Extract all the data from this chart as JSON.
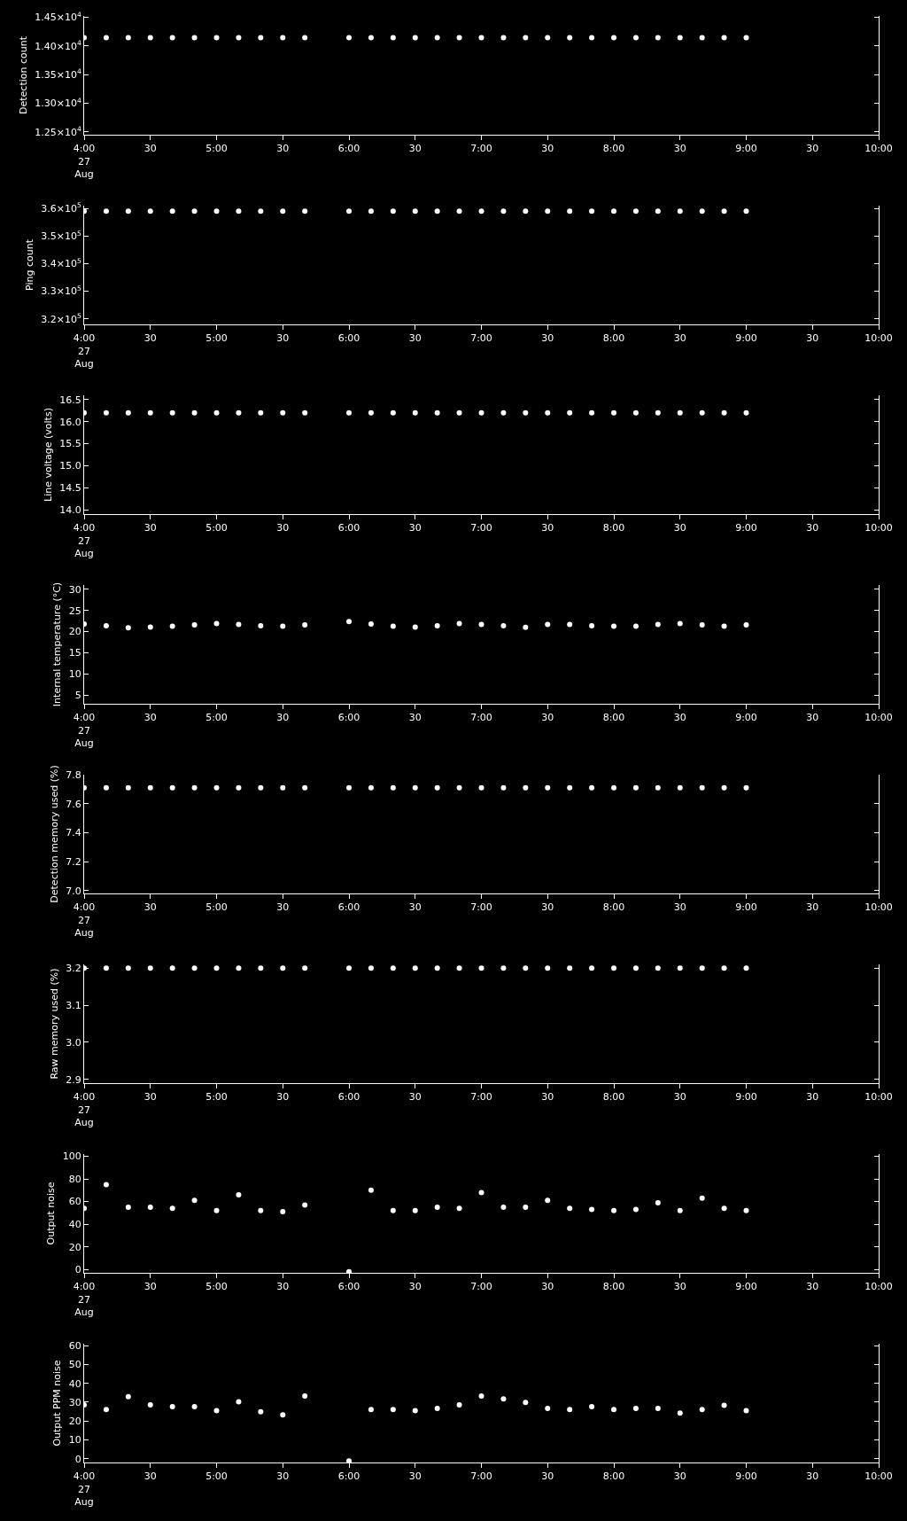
{
  "chart_data": [
    {
      "type": "scatter",
      "ylabel": "Detection count",
      "marker": "circle",
      "color": "#ffffff",
      "x": [
        "--08-27T04:00",
        "--08-27T04:10",
        "--08-27T04:20",
        "--08-27T04:30",
        "--08-27T04:40",
        "--08-27T04:50",
        "--08-27T05:00",
        "--08-27T05:10",
        "--08-27T05:20",
        "--08-27T05:30",
        "--08-27T05:40",
        "--08-27T06:00",
        "--08-27T06:10",
        "--08-27T06:20",
        "--08-27T06:30",
        "--08-27T06:40",
        "--08-27T06:50",
        "--08-27T07:00",
        "--08-27T07:10",
        "--08-27T07:20",
        "--08-27T07:30",
        "--08-27T07:40",
        "--08-27T07:50",
        "--08-27T08:00",
        "--08-27T08:10",
        "--08-27T08:20",
        "--08-27T08:30",
        "--08-27T08:40",
        "--08-27T08:50",
        "--08-27T09:00"
      ],
      "values": [
        14140,
        14140,
        14140,
        14140,
        14140,
        14140,
        14140,
        14140,
        14140,
        14140,
        14140,
        14140,
        14140,
        14140,
        14140,
        14140,
        14140,
        14140,
        14140,
        14140,
        14140,
        14140,
        14140,
        14140,
        14140,
        14140,
        14140,
        14140,
        14140,
        14140
      ],
      "xlim": [
        "--08-27T04:00",
        "--08-27T10:00"
      ],
      "xticks": [
        {
          "value": "--08-27T04:00",
          "label": "4:00\n27\nAug"
        },
        {
          "value": "--08-27T04:30",
          "label": "30"
        },
        {
          "value": "--08-27T05:00",
          "label": "5:00"
        },
        {
          "value": "--08-27T05:30",
          "label": "30"
        },
        {
          "value": "--08-27T06:00",
          "label": "6:00"
        },
        {
          "value": "--08-27T06:30",
          "label": "30"
        },
        {
          "value": "--08-27T07:00",
          "label": "7:00"
        },
        {
          "value": "--08-27T07:30",
          "label": "30"
        },
        {
          "value": "--08-27T08:00",
          "label": "8:00"
        },
        {
          "value": "--08-27T08:30",
          "label": "30"
        },
        {
          "value": "--08-27T09:00",
          "label": "9:00"
        },
        {
          "value": "--08-27T09:30",
          "label": "30"
        },
        {
          "value": "--08-27T10:00",
          "label": "10:00"
        }
      ],
      "ylim": [
        12450,
        14520
      ],
      "yticks": [
        {
          "value": 12500,
          "label": "1.25×10$^{4}$"
        },
        {
          "value": 13000,
          "label": "1.30×10$^{4}$"
        },
        {
          "value": 13500,
          "label": "1.35×10$^{4}$"
        },
        {
          "value": 14000,
          "label": "1.40×10$^{4}$"
        },
        {
          "value": 14500,
          "label": "1.45×10$^{4}$"
        }
      ]
    },
    {
      "type": "scatter",
      "ylabel": "Ping count",
      "marker": "circle",
      "color": "#ffffff",
      "x": [
        "--08-27T04:00",
        "--08-27T04:10",
        "--08-27T04:20",
        "--08-27T04:30",
        "--08-27T04:40",
        "--08-27T04:50",
        "--08-27T05:00",
        "--08-27T05:10",
        "--08-27T05:20",
        "--08-27T05:30",
        "--08-27T05:40",
        "--08-27T06:00",
        "--08-27T06:10",
        "--08-27T06:20",
        "--08-27T06:30",
        "--08-27T06:40",
        "--08-27T06:50",
        "--08-27T07:00",
        "--08-27T07:10",
        "--08-27T07:20",
        "--08-27T07:30",
        "--08-27T07:40",
        "--08-27T07:50",
        "--08-27T08:00",
        "--08-27T08:10",
        "--08-27T08:20",
        "--08-27T08:30",
        "--08-27T08:40",
        "--08-27T08:50",
        "--08-27T09:00"
      ],
      "values": [
        359000,
        359000,
        359000,
        359000,
        359000,
        359000,
        359000,
        359000,
        359000,
        359000,
        359000,
        359000,
        359000,
        359000,
        359000,
        359000,
        359000,
        359000,
        359000,
        359000,
        359000,
        359000,
        359000,
        359000,
        359000,
        359000,
        359000,
        359000,
        359000,
        359000
      ],
      "xlim": [
        "--08-27T04:00",
        "--08-27T10:00"
      ],
      "xticks": [
        {
          "value": "--08-27T04:00",
          "label": "4:00\n27\nAug"
        },
        {
          "value": "--08-27T04:30",
          "label": "30"
        },
        {
          "value": "--08-27T05:00",
          "label": "5:00"
        },
        {
          "value": "--08-27T05:30",
          "label": "30"
        },
        {
          "value": "--08-27T06:00",
          "label": "6:00"
        },
        {
          "value": "--08-27T06:30",
          "label": "30"
        },
        {
          "value": "--08-27T07:00",
          "label": "7:00"
        },
        {
          "value": "--08-27T07:30",
          "label": "30"
        },
        {
          "value": "--08-27T08:00",
          "label": "8:00"
        },
        {
          "value": "--08-27T08:30",
          "label": "30"
        },
        {
          "value": "--08-27T09:00",
          "label": "9:00"
        },
        {
          "value": "--08-27T09:30",
          "label": "30"
        },
        {
          "value": "--08-27T10:00",
          "label": "10:00"
        }
      ],
      "ylim": [
        318000,
        361000
      ],
      "yticks": [
        {
          "value": 320000,
          "label": "3.2×10$^{5}$"
        },
        {
          "value": 330000,
          "label": "3.3×10$^{5}$"
        },
        {
          "value": 340000,
          "label": "3.4×10$^{5}$"
        },
        {
          "value": 350000,
          "label": "3.5×10$^{5}$"
        },
        {
          "value": 360000,
          "label": "3.6×10$^{5}$"
        }
      ]
    },
    {
      "type": "scatter",
      "ylabel": "Line voltage (volts)",
      "marker": "circle",
      "color": "#ffffff",
      "x": [
        "--08-27T04:00",
        "--08-27T04:10",
        "--08-27T04:20",
        "--08-27T04:30",
        "--08-27T04:40",
        "--08-27T04:50",
        "--08-27T05:00",
        "--08-27T05:10",
        "--08-27T05:20",
        "--08-27T05:30",
        "--08-27T05:40",
        "--08-27T06:00",
        "--08-27T06:10",
        "--08-27T06:20",
        "--08-27T06:30",
        "--08-27T06:40",
        "--08-27T06:50",
        "--08-27T07:00",
        "--08-27T07:10",
        "--08-27T07:20",
        "--08-27T07:30",
        "--08-27T07:40",
        "--08-27T07:50",
        "--08-27T08:00",
        "--08-27T08:10",
        "--08-27T08:20",
        "--08-27T08:30",
        "--08-27T08:40",
        "--08-27T08:50",
        "--08-27T09:00"
      ],
      "values": [
        16.2,
        16.2,
        16.2,
        16.2,
        16.2,
        16.2,
        16.2,
        16.2,
        16.2,
        16.2,
        16.2,
        16.2,
        16.2,
        16.2,
        16.2,
        16.2,
        16.2,
        16.2,
        16.2,
        16.2,
        16.2,
        16.2,
        16.2,
        16.2,
        16.2,
        16.2,
        16.2,
        16.2,
        16.2,
        16.2
      ],
      "xlim": [
        "--08-27T04:00",
        "--08-27T10:00"
      ],
      "xticks": [
        {
          "value": "--08-27T04:00",
          "label": "4:00\n27\nAug"
        },
        {
          "value": "--08-27T04:30",
          "label": "30"
        },
        {
          "value": "--08-27T05:00",
          "label": "5:00"
        },
        {
          "value": "--08-27T05:30",
          "label": "30"
        },
        {
          "value": "--08-27T06:00",
          "label": "6:00"
        },
        {
          "value": "--08-27T06:30",
          "label": "30"
        },
        {
          "value": "--08-27T07:00",
          "label": "7:00"
        },
        {
          "value": "--08-27T07:30",
          "label": "30"
        },
        {
          "value": "--08-27T08:00",
          "label": "8:00"
        },
        {
          "value": "--08-27T08:30",
          "label": "30"
        },
        {
          "value": "--08-27T09:00",
          "label": "9:00"
        },
        {
          "value": "--08-27T09:30",
          "label": "30"
        },
        {
          "value": "--08-27T10:00",
          "label": "10:00"
        }
      ],
      "ylim": [
        13.9,
        16.6
      ],
      "yticks": [
        {
          "value": 14,
          "label": "14.0"
        },
        {
          "value": 14.5,
          "label": "14.5"
        },
        {
          "value": 15,
          "label": "15.0"
        },
        {
          "value": 15.5,
          "label": "15.5"
        },
        {
          "value": 16,
          "label": "16.0"
        },
        {
          "value": 16.5,
          "label": "16.5"
        }
      ]
    },
    {
      "type": "scatter",
      "ylabel": "Internal temperature (°C)",
      "marker": "circle",
      "color": "#ffffff",
      "x": [
        "--08-27T04:00",
        "--08-27T04:10",
        "--08-27T04:20",
        "--08-27T04:30",
        "--08-27T04:40",
        "--08-27T04:50",
        "--08-27T05:00",
        "--08-27T05:10",
        "--08-27T05:20",
        "--08-27T05:30",
        "--08-27T05:40",
        "--08-27T06:00",
        "--08-27T06:10",
        "--08-27T06:20",
        "--08-27T06:30",
        "--08-27T06:40",
        "--08-27T06:50",
        "--08-27T07:00",
        "--08-27T07:10",
        "--08-27T07:20",
        "--08-27T07:30",
        "--08-27T07:40",
        "--08-27T07:50",
        "--08-27T08:00",
        "--08-27T08:10",
        "--08-27T08:20",
        "--08-27T08:30",
        "--08-27T08:40",
        "--08-27T08:50",
        "--08-27T09:00"
      ],
      "values": [
        21.8,
        21.4,
        20.9,
        21.1,
        21.3,
        21.6,
        21.9,
        21.7,
        21.4,
        21.3,
        21.6,
        22.4,
        21.8,
        21.3,
        21.1,
        21.4,
        21.9,
        21.7,
        21.4,
        21.0,
        21.7,
        21.7,
        21.4,
        21.3,
        21.3,
        21.7,
        21.9,
        21.6,
        21.3,
        21.6
      ],
      "xlim": [
        "--08-27T04:00",
        "--08-27T10:00"
      ],
      "xticks": [
        {
          "value": "--08-27T04:00",
          "label": "4:00\n27\nAug"
        },
        {
          "value": "--08-27T04:30",
          "label": "30"
        },
        {
          "value": "--08-27T05:00",
          "label": "5:00"
        },
        {
          "value": "--08-27T05:30",
          "label": "30"
        },
        {
          "value": "--08-27T06:00",
          "label": "6:00"
        },
        {
          "value": "--08-27T06:30",
          "label": "30"
        },
        {
          "value": "--08-27T07:00",
          "label": "7:00"
        },
        {
          "value": "--08-27T07:30",
          "label": "30"
        },
        {
          "value": "--08-27T08:00",
          "label": "8:00"
        },
        {
          "value": "--08-27T08:30",
          "label": "30"
        },
        {
          "value": "--08-27T09:00",
          "label": "9:00"
        },
        {
          "value": "--08-27T09:30",
          "label": "30"
        },
        {
          "value": "--08-27T10:00",
          "label": "10:00"
        }
      ],
      "ylim": [
        3,
        31
      ],
      "yticks": [
        5,
        10,
        15,
        20,
        25,
        30
      ]
    },
    {
      "type": "scatter",
      "ylabel": "Detection memory used (%)",
      "marker": "circle",
      "color": "#ffffff",
      "x": [
        "--08-27T04:00",
        "--08-27T04:10",
        "--08-27T04:20",
        "--08-27T04:30",
        "--08-27T04:40",
        "--08-27T04:50",
        "--08-27T05:00",
        "--08-27T05:10",
        "--08-27T05:20",
        "--08-27T05:30",
        "--08-27T05:40",
        "--08-27T06:00",
        "--08-27T06:10",
        "--08-27T06:20",
        "--08-27T06:30",
        "--08-27T06:40",
        "--08-27T06:50",
        "--08-27T07:00",
        "--08-27T07:10",
        "--08-27T07:20",
        "--08-27T07:30",
        "--08-27T07:40",
        "--08-27T07:50",
        "--08-27T08:00",
        "--08-27T08:10",
        "--08-27T08:20",
        "--08-27T08:30",
        "--08-27T08:40",
        "--08-27T08:50",
        "--08-27T09:00"
      ],
      "values": [
        7.71,
        7.71,
        7.71,
        7.71,
        7.71,
        7.71,
        7.71,
        7.71,
        7.71,
        7.71,
        7.71,
        7.71,
        7.71,
        7.71,
        7.71,
        7.71,
        7.71,
        7.71,
        7.71,
        7.71,
        7.71,
        7.71,
        7.71,
        7.71,
        7.71,
        7.71,
        7.71,
        7.71,
        7.71,
        7.71
      ],
      "xlim": [
        "--08-27T04:00",
        "--08-27T10:00"
      ],
      "xticks": [
        {
          "value": "--08-27T04:00",
          "label": "4:00\n27\nAug"
        },
        {
          "value": "--08-27T04:30",
          "label": "30"
        },
        {
          "value": "--08-27T05:00",
          "label": "5:00"
        },
        {
          "value": "--08-27T05:30",
          "label": "30"
        },
        {
          "value": "--08-27T06:00",
          "label": "6:00"
        },
        {
          "value": "--08-27T06:30",
          "label": "30"
        },
        {
          "value": "--08-27T07:00",
          "label": "7:00"
        },
        {
          "value": "--08-27T07:30",
          "label": "30"
        },
        {
          "value": "--08-27T08:00",
          "label": "8:00"
        },
        {
          "value": "--08-27T08:30",
          "label": "30"
        },
        {
          "value": "--08-27T09:00",
          "label": "9:00"
        },
        {
          "value": "--08-27T09:30",
          "label": "30"
        },
        {
          "value": "--08-27T10:00",
          "label": "10:00"
        }
      ],
      "ylim": [
        6.98,
        7.8
      ],
      "yticks": [
        {
          "value": 7,
          "label": "7.0"
        },
        {
          "value": 7.2,
          "label": "7.2"
        },
        {
          "value": 7.4,
          "label": "7.4"
        },
        {
          "value": 7.6,
          "label": "7.6"
        },
        {
          "value": 7.8,
          "label": "7.8"
        }
      ]
    },
    {
      "type": "scatter",
      "ylabel": "Raw memory used (%)",
      "marker": "circle",
      "color": "#ffffff",
      "x": [
        "--08-27T04:00",
        "--08-27T04:10",
        "--08-27T04:20",
        "--08-27T04:30",
        "--08-27T04:40",
        "--08-27T04:50",
        "--08-27T05:00",
        "--08-27T05:10",
        "--08-27T05:20",
        "--08-27T05:30",
        "--08-27T05:40",
        "--08-27T06:00",
        "--08-27T06:10",
        "--08-27T06:20",
        "--08-27T06:30",
        "--08-27T06:40",
        "--08-27T06:50",
        "--08-27T07:00",
        "--08-27T07:10",
        "--08-27T07:20",
        "--08-27T07:30",
        "--08-27T07:40",
        "--08-27T07:50",
        "--08-27T08:00",
        "--08-27T08:10",
        "--08-27T08:20",
        "--08-27T08:30",
        "--08-27T08:40",
        "--08-27T08:50",
        "--08-27T09:00"
      ],
      "values": [
        3.2,
        3.2,
        3.2,
        3.2,
        3.2,
        3.2,
        3.2,
        3.2,
        3.2,
        3.2,
        3.2,
        3.2,
        3.2,
        3.2,
        3.2,
        3.2,
        3.2,
        3.2,
        3.2,
        3.2,
        3.2,
        3.2,
        3.2,
        3.2,
        3.2,
        3.2,
        3.2,
        3.2,
        3.2,
        3.2
      ],
      "xlim": [
        "--08-27T04:00",
        "--08-27T10:00"
      ],
      "xticks": [
        {
          "value": "--08-27T04:00",
          "label": "4:00\n27\nAug"
        },
        {
          "value": "--08-27T04:30",
          "label": "30"
        },
        {
          "value": "--08-27T05:00",
          "label": "5:00"
        },
        {
          "value": "--08-27T05:30",
          "label": "30"
        },
        {
          "value": "--08-27T06:00",
          "label": "6:00"
        },
        {
          "value": "--08-27T06:30",
          "label": "30"
        },
        {
          "value": "--08-27T07:00",
          "label": "7:00"
        },
        {
          "value": "--08-27T07:30",
          "label": "30"
        },
        {
          "value": "--08-27T08:00",
          "label": "8:00"
        },
        {
          "value": "--08-27T08:30",
          "label": "30"
        },
        {
          "value": "--08-27T09:00",
          "label": "9:00"
        },
        {
          "value": "--08-27T09:30",
          "label": "30"
        },
        {
          "value": "--08-27T10:00",
          "label": "10:00"
        }
      ],
      "ylim": [
        2.89,
        3.21
      ],
      "yticks": [
        {
          "value": 2.9,
          "label": "2.9"
        },
        {
          "value": 3,
          "label": "3.0"
        },
        {
          "value": 3.1,
          "label": "3.1"
        },
        {
          "value": 3.2,
          "label": "3.2"
        }
      ]
    },
    {
      "type": "scatter",
      "ylabel": "Output noise",
      "marker": "circle",
      "color": "#ffffff",
      "x": [
        "--08-27T04:00",
        "--08-27T04:10",
        "--08-27T04:20",
        "--08-27T04:30",
        "--08-27T04:40",
        "--08-27T04:50",
        "--08-27T05:00",
        "--08-27T05:10",
        "--08-27T05:20",
        "--08-27T05:30",
        "--08-27T05:40",
        "--08-27T06:00",
        "--08-27T06:10",
        "--08-27T06:20",
        "--08-27T06:30",
        "--08-27T06:40",
        "--08-27T06:50",
        "--08-27T07:00",
        "--08-27T07:10",
        "--08-27T07:20",
        "--08-27T07:30",
        "--08-27T07:40",
        "--08-27T07:50",
        "--08-27T08:00",
        "--08-27T08:10",
        "--08-27T08:20",
        "--08-27T08:30",
        "--08-27T08:40",
        "--08-27T08:50",
        "--08-27T09:00"
      ],
      "values": [
        54,
        75,
        55,
        55,
        54,
        61,
        52,
        66,
        52,
        51,
        57,
        -2,
        70,
        52,
        52,
        55,
        54,
        68,
        55,
        55,
        61,
        54,
        53,
        52,
        53,
        59,
        52,
        63,
        54,
        52
      ],
      "xlim": [
        "--08-27T04:00",
        "--08-27T10:00"
      ],
      "xticks": [
        {
          "value": "--08-27T04:00",
          "label": "4:00\n27\nAug"
        },
        {
          "value": "--08-27T04:30",
          "label": "30"
        },
        {
          "value": "--08-27T05:00",
          "label": "5:00"
        },
        {
          "value": "--08-27T05:30",
          "label": "30"
        },
        {
          "value": "--08-27T06:00",
          "label": "6:00"
        },
        {
          "value": "--08-27T06:30",
          "label": "30"
        },
        {
          "value": "--08-27T07:00",
          "label": "7:00"
        },
        {
          "value": "--08-27T07:30",
          "label": "30"
        },
        {
          "value": "--08-27T08:00",
          "label": "8:00"
        },
        {
          "value": "--08-27T08:30",
          "label": "30"
        },
        {
          "value": "--08-27T09:00",
          "label": "9:00"
        },
        {
          "value": "--08-27T09:30",
          "label": "30"
        },
        {
          "value": "--08-27T10:00",
          "label": "10:00"
        }
      ],
      "ylim": [
        -3,
        102
      ],
      "yticks": [
        0,
        20,
        40,
        60,
        80,
        100
      ]
    },
    {
      "type": "scatter",
      "ylabel": "Output PPM noise",
      "marker": "circle",
      "color": "#ffffff",
      "x": [
        "--08-27T04:00",
        "--08-27T04:10",
        "--08-27T04:20",
        "--08-27T04:30",
        "--08-27T04:40",
        "--08-27T04:50",
        "--08-27T05:00",
        "--08-27T05:10",
        "--08-27T05:20",
        "--08-27T05:30",
        "--08-27T05:40",
        "--08-27T06:00",
        "--08-27T06:10",
        "--08-27T06:20",
        "--08-27T06:30",
        "--08-27T06:40",
        "--08-27T06:50",
        "--08-27T07:00",
        "--08-27T07:10",
        "--08-27T07:20",
        "--08-27T07:30",
        "--08-27T07:40",
        "--08-27T07:50",
        "--08-27T08:00",
        "--08-27T08:10",
        "--08-27T08:20",
        "--08-27T08:30",
        "--08-27T08:40",
        "--08-27T08:50",
        "--08-27T09:00"
      ],
      "values": [
        28.6,
        26.1,
        32.9,
        28.6,
        27.6,
        27.6,
        25.5,
        30.2,
        24.9,
        23.3,
        33.3,
        -1.2,
        26.1,
        26.1,
        25.5,
        26.7,
        28.6,
        33.3,
        31.7,
        29.8,
        26.7,
        26.1,
        27.6,
        26.1,
        26.7,
        26.7,
        24.2,
        26.1,
        28.3,
        25.5
      ],
      "xlim": [
        "--08-27T04:00",
        "--08-27T10:00"
      ],
      "xticks": [
        {
          "value": "--08-27T04:00",
          "label": "4:00\n27\nAug"
        },
        {
          "value": "--08-27T04:30",
          "label": "30"
        },
        {
          "value": "--08-27T05:00",
          "label": "5:00"
        },
        {
          "value": "--08-27T05:30",
          "label": "30"
        },
        {
          "value": "--08-27T06:00",
          "label": "6:00"
        },
        {
          "value": "--08-27T06:30",
          "label": "30"
        },
        {
          "value": "--08-27T07:00",
          "label": "7:00"
        },
        {
          "value": "--08-27T07:30",
          "label": "30"
        },
        {
          "value": "--08-27T08:00",
          "label": "8:00"
        },
        {
          "value": "--08-27T08:30",
          "label": "30"
        },
        {
          "value": "--08-27T09:00",
          "label": "9:00"
        },
        {
          "value": "--08-27T09:30",
          "label": "30"
        },
        {
          "value": "--08-27T10:00",
          "label": "10:00"
        }
      ],
      "ylim": [
        -2,
        61
      ],
      "yticks": [
        0,
        10,
        20,
        30,
        40,
        50,
        60
      ]
    }
  ]
}
